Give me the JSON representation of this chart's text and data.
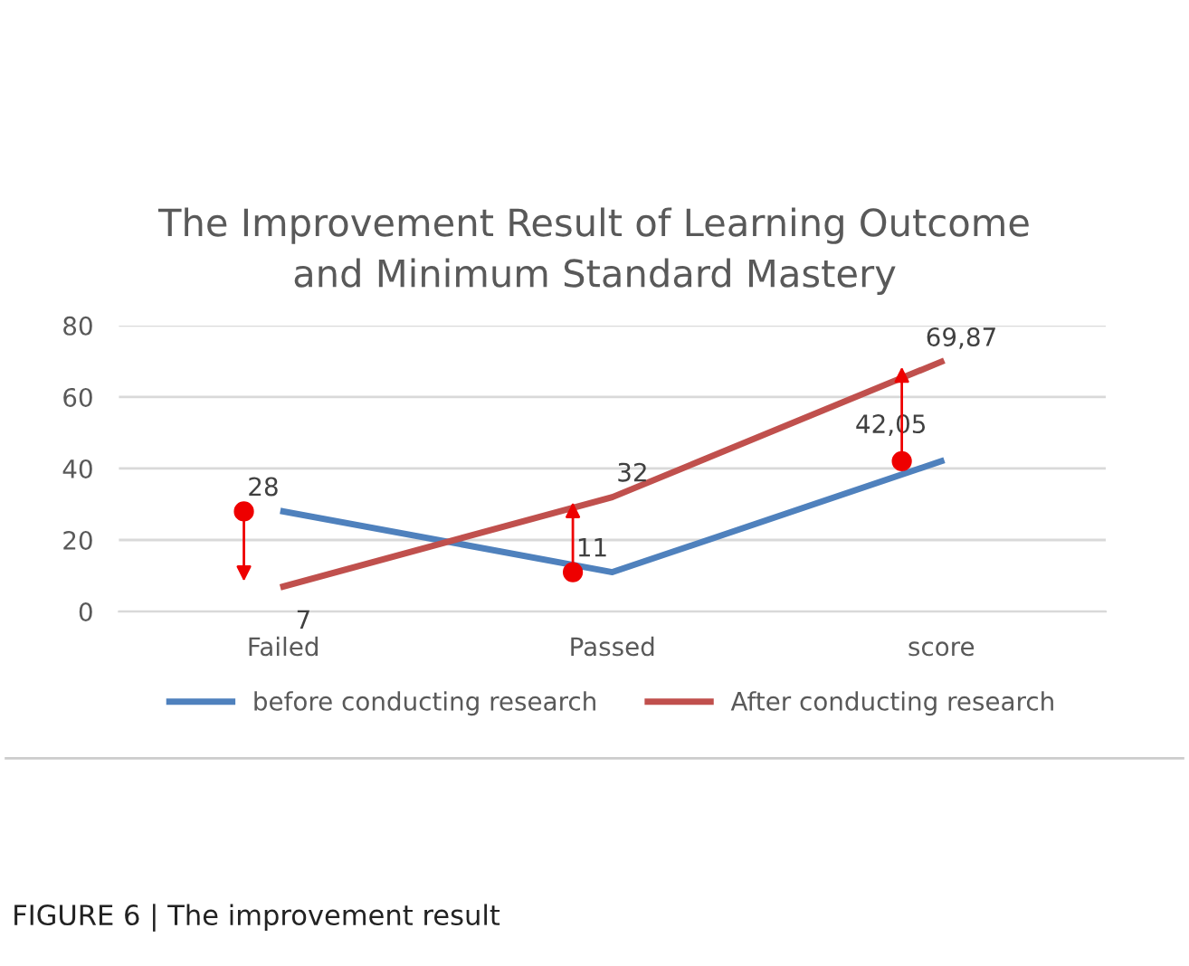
{
  "chart_data": {
    "type": "line",
    "title": "The Improvement Result of Learning Outcome\nand Minimum Standard Mastery",
    "categories": [
      "Failed",
      "Passed",
      "score"
    ],
    "series": [
      {
        "name": "before conducting research",
        "color": "#4f81bd",
        "values": [
          28,
          11,
          42.05
        ],
        "value_labels": [
          "28",
          "11",
          "42,05"
        ]
      },
      {
        "name": "After conducting research",
        "color": "#c0504d",
        "values": [
          7,
          32,
          69.87
        ],
        "value_labels": [
          "7",
          "32",
          "69,87"
        ]
      }
    ],
    "ylim": [
      0,
      80
    ],
    "yticks": [
      0,
      20,
      40,
      60,
      80
    ],
    "grid": "y",
    "legend": "bottom",
    "line_style": "solid",
    "annotations": [
      "FIGURE 6 | The improvement result"
    ]
  }
}
